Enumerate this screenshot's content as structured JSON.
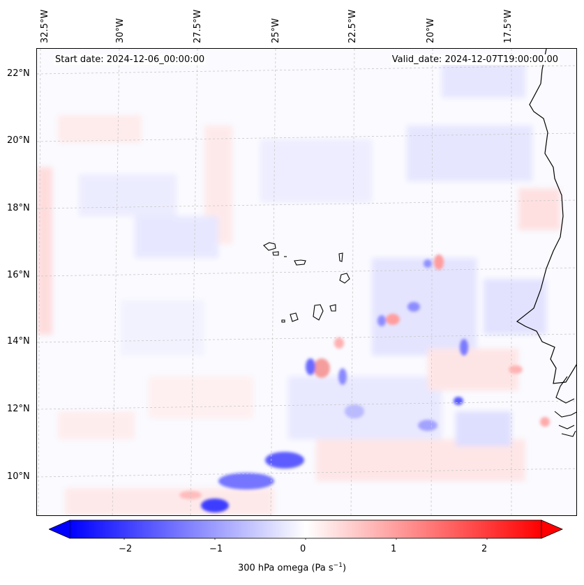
{
  "map": {
    "start_date": "Start date: 2024-12-06_00:00:00",
    "valid_date": "Valid_date: 2024-12-07T19:00:00.00",
    "lon_labels": [
      "32.5°W",
      "30°W",
      "27.5°W",
      "25°W",
      "22.5°W",
      "20°W",
      "17.5°W"
    ],
    "lat_labels": [
      "22°N",
      "20°N",
      "18°N",
      "16°N",
      "14°N",
      "12°N",
      "10°N"
    ],
    "colorbar": {
      "ticks": [
        "−2",
        "−1",
        "0",
        "1",
        "2"
      ],
      "label": "300 hPa omega (Pa s",
      "label_sup": "−1",
      "label_end": ")",
      "min_color": "#0000ff",
      "mid_color": "#ffffff",
      "max_color": "#ff0000",
      "range": [
        -2.6,
        2.6
      ]
    }
  }
}
